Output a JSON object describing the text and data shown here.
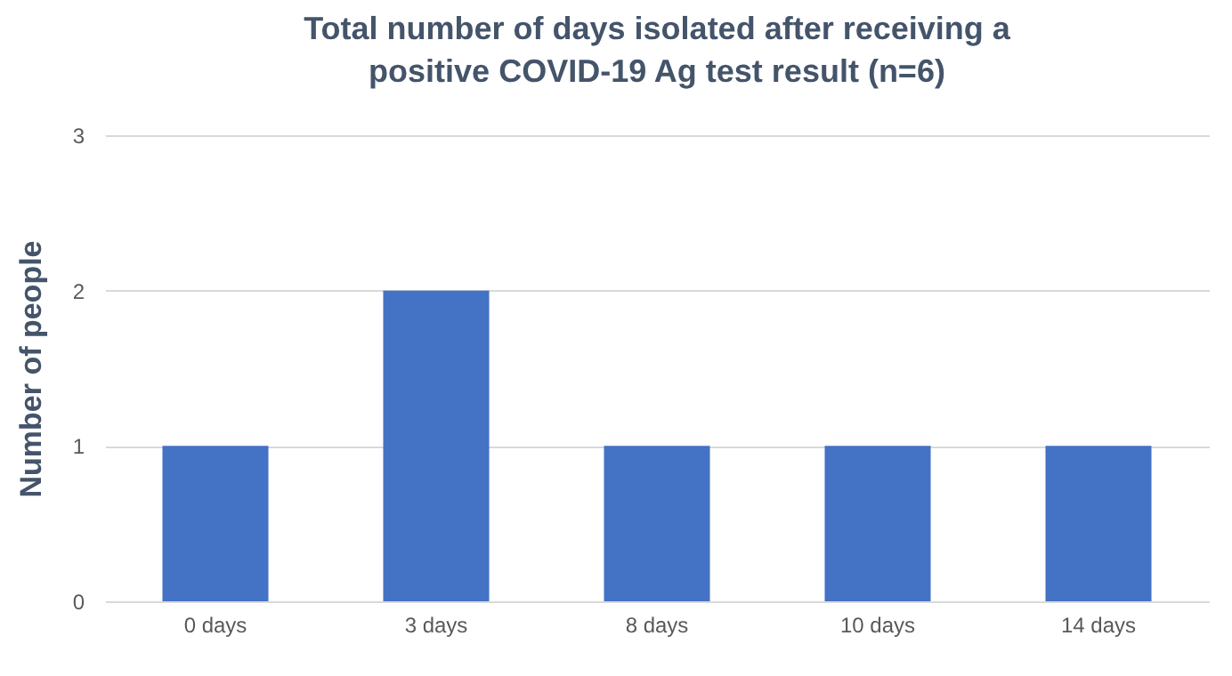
{
  "chart_data": {
    "type": "bar",
    "title": "Total number of days isolated after receiving a positive COVID-19 Ag test result (n=6)",
    "ylabel": "Number of people",
    "categories": [
      "0 days",
      "3 days",
      "8 days",
      "10 days",
      "14 days"
    ],
    "values": [
      1,
      2,
      1,
      1,
      1
    ],
    "color": "#4472c4",
    "ylim": [
      0,
      3
    ],
    "yticks": [
      0,
      1,
      2,
      3
    ],
    "grid": "y"
  }
}
